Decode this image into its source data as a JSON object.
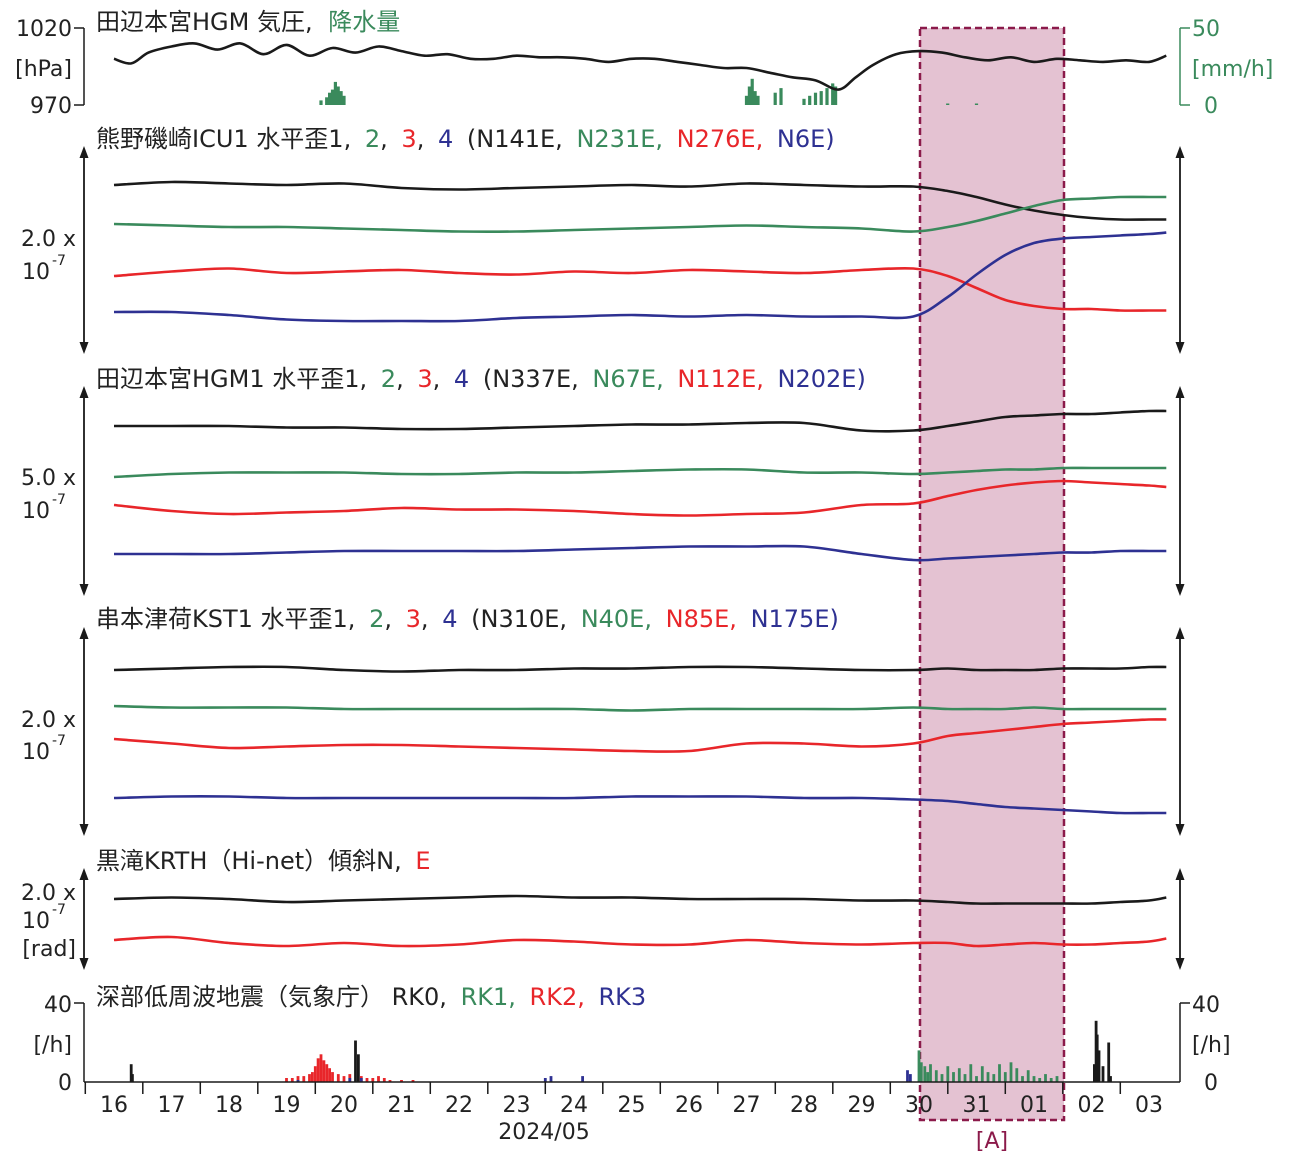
{
  "colors": {
    "black": "#1a1a1a",
    "green": "#3a8a5c",
    "red": "#e8262a",
    "blue": "#2e3192",
    "highlight_fill": "#dbaec3",
    "highlight_border": "#8b1a4a",
    "rain": "#3a8a5c"
  },
  "x_axis": {
    "label": "2024/05",
    "days": [
      "16",
      "17",
      "18",
      "19",
      "20",
      "21",
      "22",
      "23",
      "24",
      "25",
      "26",
      "27",
      "28",
      "29",
      "30",
      "31",
      "01",
      "02",
      "03"
    ]
  },
  "highlight": {
    "label": "[A]",
    "start_day_index": 13.9,
    "end_day_index": 16.45
  },
  "panels": [
    {
      "id": "pressure",
      "title": "田辺本宮HGM 気圧,",
      "title_extra": "降水量",
      "left_ticks": [
        "1020",
        "970"
      ],
      "left_unit": "[hPa]",
      "right_ticks": [
        "50",
        "0"
      ],
      "right_unit": "[mm/h]"
    },
    {
      "id": "icu1",
      "title_prefix": "熊野磯崎ICU1 水平歪1,",
      "n2": "2",
      "n3": "3",
      "n4": "4",
      "dir1": "(N141E,",
      "dir2": "N231E,",
      "dir3": "N276E,",
      "dir4": "N6E)",
      "scale": "2.0 x",
      "scale_exp_base": "10",
      "scale_exp": "-7"
    },
    {
      "id": "hgm1",
      "title_prefix": "田辺本宮HGM1 水平歪1,",
      "n2": "2",
      "n3": "3",
      "n4": "4",
      "dir1": "(N337E,",
      "dir2": "N67E,",
      "dir3": "N112E,",
      "dir4": "N202E)",
      "scale": "5.0 x",
      "scale_exp_base": "10",
      "scale_exp": "-7"
    },
    {
      "id": "kst1",
      "title_prefix": "串本津荷KST1 水平歪1,",
      "n2": "2",
      "n3": "3",
      "n4": "4",
      "dir1": "(N310E,",
      "dir2": "N40E,",
      "dir3": "N85E,",
      "dir4": "N175E)",
      "scale": "2.0 x",
      "scale_exp_base": "10",
      "scale_exp": "-7"
    },
    {
      "id": "krth",
      "title_prefix": "黒滝KRTH（Hi-net）傾斜N,",
      "n_e": "E",
      "scale": "2.0 x",
      "scale_exp_base": "10",
      "scale_exp": "-7",
      "scale_unit": "[rad]"
    },
    {
      "id": "lfe",
      "title_prefix": "深部低周波地震（気象庁） RK0,",
      "rk1": "RK1,",
      "rk2": "RK2,",
      "rk3": "RK3",
      "left_ticks": [
        "40",
        "0"
      ],
      "left_unit": "[/h]",
      "right_ticks": [
        "40",
        "0"
      ],
      "right_unit": "[/h]"
    }
  ],
  "chart_data": [
    {
      "type": "line",
      "panel": "pressure",
      "ylabel": "[hPa]",
      "ylim": [
        970,
        1020
      ],
      "x_unit": "day index from 16 May",
      "series": [
        {
          "name": "気圧",
          "x": [
            0,
            0.3,
            0.6,
            1.0,
            1.4,
            1.8,
            2.2,
            2.6,
            3.0,
            3.4,
            3.8,
            4.2,
            4.6,
            5.0,
            5.4,
            5.8,
            6.2,
            6.6,
            7.0,
            7.4,
            7.8,
            8.2,
            8.6,
            9.0,
            9.4,
            9.8,
            10.2,
            10.6,
            11.0,
            11.4,
            11.8,
            12.2,
            12.6,
            12.9,
            13.2,
            13.6,
            14.0,
            14.4,
            14.8,
            15.2,
            15.6,
            16.0,
            16.4,
            16.8,
            17.2,
            17.6,
            18.0,
            18.3
          ],
          "y": [
            1000,
            997,
            1004,
            1008,
            1010,
            1006,
            1010,
            1003,
            1009,
            1002,
            1007,
            1004,
            1008,
            1005,
            1002,
            1003,
            1000,
            1000,
            1002,
            1001,
            1001,
            1000,
            998,
            1000,
            1000,
            998,
            996,
            994,
            994,
            991,
            988,
            986,
            980,
            988,
            996,
            1003,
            1005,
            1004,
            1001,
            999,
            1001,
            998,
            1000,
            999,
            998,
            999,
            998,
            1002
          ]
        },
        {
          "name": "降水量",
          "unit": "mm/h",
          "x": [
            3.6,
            3.7,
            3.75,
            3.8,
            3.85,
            3.9,
            3.95,
            4.0,
            11.0,
            11.05,
            11.1,
            11.15,
            11.2,
            11.5,
            11.6,
            12.0,
            12.1,
            12.2,
            12.3,
            12.4,
            12.5,
            12.55,
            14.5,
            15.0
          ],
          "y": [
            3,
            5,
            8,
            10,
            15,
            12,
            9,
            6,
            6,
            12,
            17,
            9,
            6,
            8,
            11,
            4,
            6,
            8,
            9,
            11,
            14,
            12,
            1,
            1
          ]
        }
      ]
    },
    {
      "type": "line",
      "panel": "icu1",
      "scale": "2.0 x 10^-7",
      "x": [
        0,
        1,
        2,
        3,
        4,
        5,
        6,
        7,
        8,
        9,
        10,
        11,
        12,
        13,
        13.9,
        14.5,
        15.0,
        15.5,
        16.0,
        16.5,
        17.0,
        17.5,
        18.0,
        18.3
      ],
      "series": [
        {
          "name": "1",
          "y": [
            0.0,
            0.02,
            0.01,
            0.0,
            0.01,
            -0.02,
            -0.03,
            -0.02,
            -0.01,
            0.0,
            -0.01,
            0.01,
            0.0,
            -0.01,
            -0.01,
            -0.04,
            -0.08,
            -0.13,
            -0.17,
            -0.2,
            -0.22,
            -0.23,
            -0.23,
            -0.23
          ]
        },
        {
          "name": "2",
          "y": [
            0.0,
            -0.01,
            -0.02,
            -0.02,
            -0.03,
            -0.04,
            -0.05,
            -0.05,
            -0.04,
            -0.03,
            -0.02,
            -0.01,
            -0.02,
            -0.03,
            -0.05,
            -0.02,
            0.02,
            0.07,
            0.12,
            0.16,
            0.17,
            0.18,
            0.18,
            0.18
          ]
        },
        {
          "name": "3",
          "y": [
            0.0,
            0.03,
            0.05,
            0.02,
            0.03,
            0.04,
            0.02,
            0.01,
            0.03,
            0.02,
            0.04,
            0.03,
            0.02,
            0.04,
            0.05,
            0.0,
            -0.08,
            -0.16,
            -0.2,
            -0.22,
            -0.22,
            -0.23,
            -0.23,
            -0.23
          ]
        },
        {
          "name": "4",
          "y": [
            0.0,
            0.0,
            -0.02,
            -0.05,
            -0.06,
            -0.06,
            -0.06,
            -0.04,
            -0.03,
            -0.02,
            -0.03,
            -0.02,
            -0.03,
            -0.03,
            -0.03,
            0.1,
            0.25,
            0.38,
            0.46,
            0.49,
            0.5,
            0.51,
            0.52,
            0.53
          ]
        }
      ]
    },
    {
      "type": "line",
      "panel": "hgm1",
      "scale": "5.0 x 10^-7",
      "x": [
        0,
        1,
        2,
        3,
        4,
        5,
        6,
        7,
        8,
        9,
        10,
        11,
        12,
        13,
        13.9,
        14.5,
        15.0,
        15.5,
        16.0,
        16.5,
        17.0,
        17.5,
        18.0,
        18.3
      ],
      "series": [
        {
          "name": "1",
          "y": [
            0.0,
            0.0,
            0.0,
            -0.01,
            -0.01,
            -0.02,
            -0.02,
            -0.01,
            0.0,
            0.01,
            0.01,
            0.02,
            0.02,
            -0.03,
            -0.03,
            0.0,
            0.03,
            0.06,
            0.07,
            0.08,
            0.08,
            0.09,
            0.1,
            0.1
          ]
        },
        {
          "name": "2",
          "y": [
            0.0,
            0.02,
            0.03,
            0.03,
            0.03,
            0.02,
            0.02,
            0.03,
            0.03,
            0.04,
            0.05,
            0.05,
            0.03,
            0.03,
            0.02,
            0.03,
            0.04,
            0.05,
            0.05,
            0.06,
            0.06,
            0.06,
            0.06,
            0.06
          ]
        },
        {
          "name": "3",
          "y": [
            0.0,
            -0.04,
            -0.06,
            -0.05,
            -0.04,
            -0.02,
            -0.03,
            -0.03,
            -0.04,
            -0.06,
            -0.07,
            -0.06,
            -0.05,
            0.0,
            0.01,
            0.06,
            0.1,
            0.13,
            0.15,
            0.16,
            0.15,
            0.14,
            0.13,
            0.12
          ]
        },
        {
          "name": "4",
          "y": [
            0.0,
            0.0,
            0.0,
            0.01,
            0.02,
            0.02,
            0.02,
            0.02,
            0.03,
            0.04,
            0.05,
            0.05,
            0.05,
            0.0,
            -0.04,
            -0.03,
            -0.02,
            -0.01,
            0.0,
            0.01,
            0.01,
            0.02,
            0.02,
            0.02
          ]
        }
      ]
    },
    {
      "type": "line",
      "panel": "kst1",
      "scale": "2.0 x 10^-7",
      "x": [
        0,
        1,
        2,
        3,
        4,
        5,
        6,
        7,
        8,
        9,
        10,
        11,
        12,
        13,
        13.9,
        14.5,
        15.0,
        15.5,
        16.0,
        16.5,
        17.0,
        17.5,
        18.0,
        18.3
      ],
      "series": [
        {
          "name": "1",
          "y": [
            0.0,
            0.01,
            0.02,
            0.02,
            0.0,
            -0.01,
            0.0,
            0.0,
            0.01,
            0.01,
            0.02,
            0.02,
            0.01,
            0.0,
            0.0,
            0.01,
            0.0,
            0.0,
            0.0,
            0.01,
            0.01,
            0.01,
            0.02,
            0.02
          ]
        },
        {
          "name": "2",
          "y": [
            0.0,
            -0.01,
            -0.01,
            -0.01,
            -0.02,
            -0.02,
            -0.02,
            -0.02,
            -0.02,
            -0.03,
            -0.02,
            -0.02,
            -0.02,
            -0.02,
            -0.01,
            -0.02,
            -0.02,
            -0.02,
            -0.01,
            -0.02,
            -0.02,
            -0.02,
            -0.02,
            -0.02
          ]
        },
        {
          "name": "3",
          "y": [
            0.0,
            -0.03,
            -0.06,
            -0.05,
            -0.04,
            -0.04,
            -0.05,
            -0.06,
            -0.07,
            -0.08,
            -0.08,
            -0.03,
            -0.03,
            -0.05,
            -0.03,
            0.02,
            0.04,
            0.06,
            0.08,
            0.1,
            0.11,
            0.12,
            0.13,
            0.13
          ]
        },
        {
          "name": "4",
          "y": [
            0.0,
            0.01,
            0.01,
            0.0,
            0.0,
            0.0,
            0.0,
            0.0,
            0.0,
            0.01,
            0.01,
            0.01,
            0.0,
            0.0,
            -0.01,
            -0.02,
            -0.04,
            -0.06,
            -0.07,
            -0.08,
            -0.09,
            -0.1,
            -0.1,
            -0.1
          ]
        }
      ]
    },
    {
      "type": "line",
      "panel": "krth",
      "scale": "2.0 x 10^-7 [rad]",
      "x": [
        0,
        1,
        2,
        3,
        4,
        5,
        6,
        7,
        8,
        9,
        10,
        11,
        12,
        13,
        13.9,
        14.5,
        15.0,
        15.5,
        16.0,
        16.5,
        17.0,
        17.5,
        18.0,
        18.3
      ],
      "series": [
        {
          "name": "N",
          "y": [
            0.0,
            0.01,
            0.0,
            -0.02,
            -0.01,
            0.0,
            0.01,
            0.02,
            0.01,
            0.01,
            0.0,
            0.0,
            0.0,
            -0.01,
            -0.01,
            -0.02,
            -0.03,
            -0.03,
            -0.03,
            -0.03,
            -0.03,
            -0.02,
            -0.01,
            0.01
          ]
        },
        {
          "name": "E",
          "y": [
            0.0,
            0.02,
            -0.02,
            -0.04,
            -0.02,
            -0.04,
            -0.03,
            0.0,
            -0.01,
            -0.03,
            -0.03,
            0.0,
            -0.02,
            -0.03,
            -0.02,
            -0.02,
            -0.04,
            -0.03,
            -0.02,
            -0.03,
            -0.03,
            -0.02,
            -0.01,
            0.01
          ]
        }
      ]
    },
    {
      "type": "bar",
      "panel": "lfe",
      "ylabel": "[/h]",
      "ylim": [
        0,
        40
      ],
      "series": [
        {
          "name": "RK0",
          "x": [
            0.3,
            0.32,
            4.2,
            4.25,
            17.05,
            17.08,
            17.1,
            17.13,
            17.2,
            17.3,
            17.33
          ],
          "y": [
            9,
            4,
            21,
            14,
            9,
            31,
            24,
            16,
            8,
            20,
            3
          ]
        },
        {
          "name": "RK1",
          "x": [
            14.0,
            14.04,
            14.1,
            14.15,
            14.2,
            14.3,
            14.4,
            14.5,
            14.6,
            14.7,
            14.8,
            14.9,
            15.0,
            15.1,
            15.2,
            15.3,
            15.4,
            15.5,
            15.6,
            15.7,
            15.8,
            15.9,
            16.0,
            16.1,
            16.2,
            16.3,
            16.4
          ],
          "y": [
            16,
            10,
            8,
            5,
            9,
            6,
            4,
            8,
            5,
            7,
            4,
            9,
            3,
            8,
            5,
            4,
            9,
            5,
            10,
            7,
            3,
            6,
            3,
            2,
            4,
            2,
            3
          ]
        },
        {
          "name": "RK2",
          "x": [
            3.0,
            3.1,
            3.2,
            3.3,
            3.4,
            3.45,
            3.5,
            3.55,
            3.6,
            3.65,
            3.7,
            3.75,
            3.8,
            3.9,
            4.0,
            4.1,
            4.3,
            4.4,
            4.5,
            4.6,
            4.7,
            4.8,
            5.0,
            5.2
          ],
          "y": [
            2,
            2,
            3,
            3,
            4,
            5,
            8,
            12,
            14,
            11,
            9,
            7,
            5,
            4,
            3,
            4,
            3,
            2,
            2,
            3,
            2,
            1,
            1,
            1
          ]
        },
        {
          "name": "RK3",
          "x": [
            3.2,
            4.1,
            4.3,
            7.5,
            7.6,
            8.15,
            13.8,
            13.85
          ],
          "y": [
            1,
            2,
            2,
            2,
            3,
            3,
            6,
            4
          ]
        }
      ]
    }
  ]
}
